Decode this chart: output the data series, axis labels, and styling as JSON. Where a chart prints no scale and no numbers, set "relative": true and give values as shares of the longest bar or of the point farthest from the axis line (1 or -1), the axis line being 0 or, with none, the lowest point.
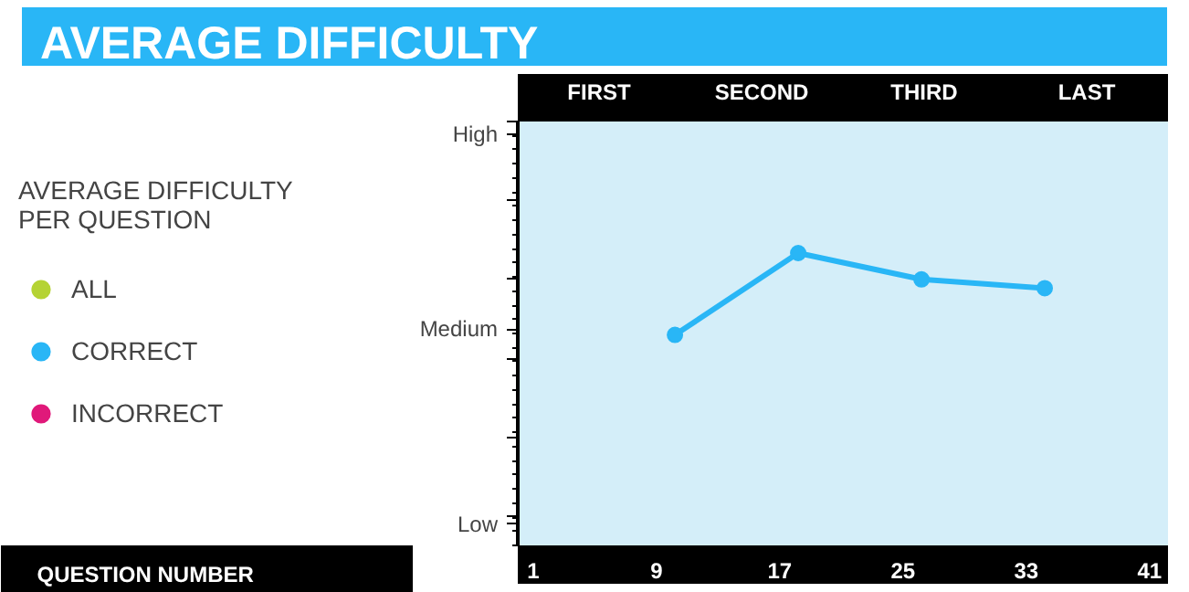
{
  "chart_data": {
    "type": "line",
    "title": "AVERAGE DIFFICULTY",
    "legend_title": "AVERAGE DIFFICULTY PER QUESTION",
    "relative": true,
    "x": [
      10.2,
      18.2,
      26.2,
      34.2
    ],
    "series": [
      {
        "name": "ALL",
        "color": "#b5d334",
        "values": [
          null,
          null,
          null,
          null
        ]
      },
      {
        "name": "CORRECT",
        "color": "#29b6f6",
        "values": [
          0.72,
          1,
          0.91,
          0.88
        ]
      },
      {
        "name": "INCORRECT",
        "color": "#e0197a",
        "values": [
          null,
          null,
          null,
          null
        ]
      }
    ],
    "xlim": [
      0,
      42.2
    ],
    "xticks": [
      1,
      9,
      17,
      25,
      33,
      41
    ],
    "annotations": [
      "QUESTION NUMBER",
      "FIRST",
      "SECOND",
      "THIRD",
      "LAST",
      "Low",
      "Medium",
      "High"
    ],
    "legend": "left",
    "marker": "circle",
    "line_style": "solid",
    "grid": false
  }
}
